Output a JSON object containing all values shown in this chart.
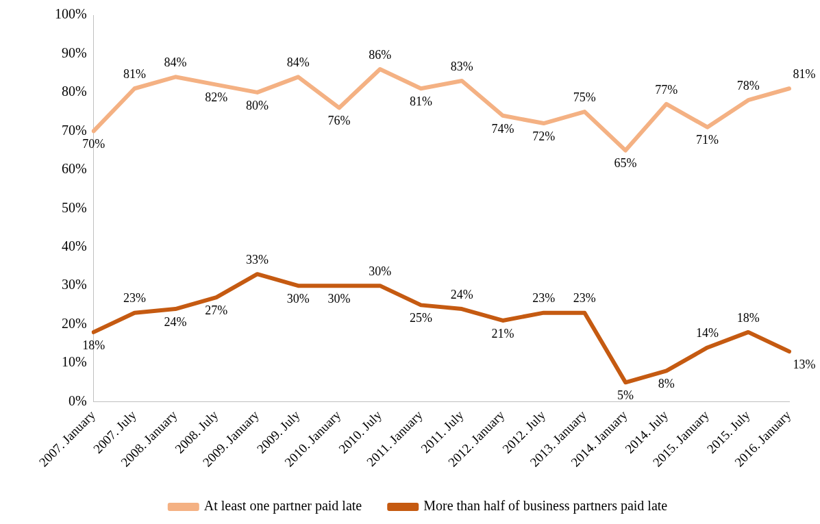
{
  "chart_data": {
    "type": "line",
    "categories": [
      "2007. January",
      "2007. July",
      "2008. January",
      "2008. July",
      "2009. January",
      "2009. July",
      "2010. January",
      "2010. July",
      "2011. January",
      "2011. July",
      "2012. January",
      "2012. July",
      "2013. January",
      "2014. January",
      "2014. July",
      "2015. January",
      "2015. July",
      "2016. January"
    ],
    "series": [
      {
        "name": "At least one partner paid late",
        "color": "#f4b183",
        "values": [
          70,
          81,
          84,
          82,
          80,
          84,
          76,
          86,
          81,
          83,
          74,
          72,
          75,
          65,
          77,
          71,
          78,
          81
        ],
        "value_labels": [
          "70%",
          "81%",
          "84%",
          "82%",
          "80%",
          "84%",
          "76%",
          "86%",
          "81%",
          "83%",
          "74%",
          "72%",
          "75%",
          "65%",
          "77%",
          "71%",
          "78%",
          "81%"
        ]
      },
      {
        "name": "More than half of business partners paid late",
        "color": "#c55a11",
        "values": [
          18,
          23,
          24,
          27,
          33,
          30,
          30,
          30,
          25,
          24,
          21,
          23,
          23,
          5,
          8,
          14,
          18,
          13
        ],
        "value_labels": [
          "18%",
          "23%",
          "24%",
          "27%",
          "33%",
          "30%",
          "30%",
          "30%",
          "25%",
          "24%",
          "21%",
          "23%",
          "23%",
          "5%",
          "8%",
          "14%",
          "18%",
          "13%"
        ]
      }
    ],
    "ylim": [
      0,
      100
    ],
    "yticks": [
      {
        "value": 0,
        "label": "0%"
      },
      {
        "value": 10,
        "label": "10%"
      },
      {
        "value": 20,
        "label": "20%"
      },
      {
        "value": 30,
        "label": "30%"
      },
      {
        "value": 40,
        "label": "40%"
      },
      {
        "value": 50,
        "label": "50%"
      },
      {
        "value": 60,
        "label": "60%"
      },
      {
        "value": 70,
        "label": "70%"
      },
      {
        "value": 80,
        "label": "80%"
      },
      {
        "value": 90,
        "label": "90%"
      },
      {
        "value": 100,
        "label": "100%"
      }
    ],
    "grid": false,
    "legend": "bottom",
    "marker": "none",
    "line_style": "solid"
  }
}
